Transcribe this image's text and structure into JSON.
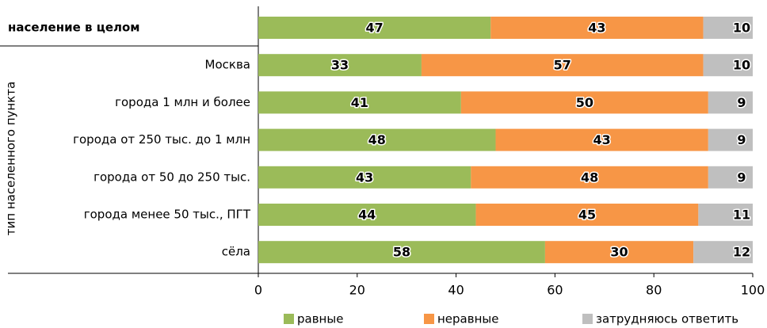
{
  "chart_data": {
    "type": "bar",
    "orientation": "horizontal",
    "stacked": true,
    "y_axis_label": "тип населенного пункта",
    "categories": [
      "население в целом",
      "Москва",
      "города 1 млн и более",
      "города от 250 тыс. до 1 млн",
      "города от 50 до 250 тыс.",
      "города менее 50 тыс., ПГТ",
      "сёла"
    ],
    "series": [
      {
        "name": "равные",
        "color": "#9bbb59",
        "values": [
          47,
          33,
          41,
          48,
          43,
          44,
          58
        ]
      },
      {
        "name": "неравные",
        "color": "#f79646",
        "values": [
          43,
          57,
          50,
          43,
          48,
          45,
          30
        ]
      },
      {
        "name": "затрудняюсь ответить",
        "color": "#bfbfbf",
        "values": [
          10,
          10,
          9,
          9,
          9,
          11,
          12
        ]
      }
    ],
    "xlim": [
      0,
      100
    ],
    "xticks": [
      0,
      20,
      40,
      60,
      80,
      100
    ],
    "legend": "bottom"
  }
}
